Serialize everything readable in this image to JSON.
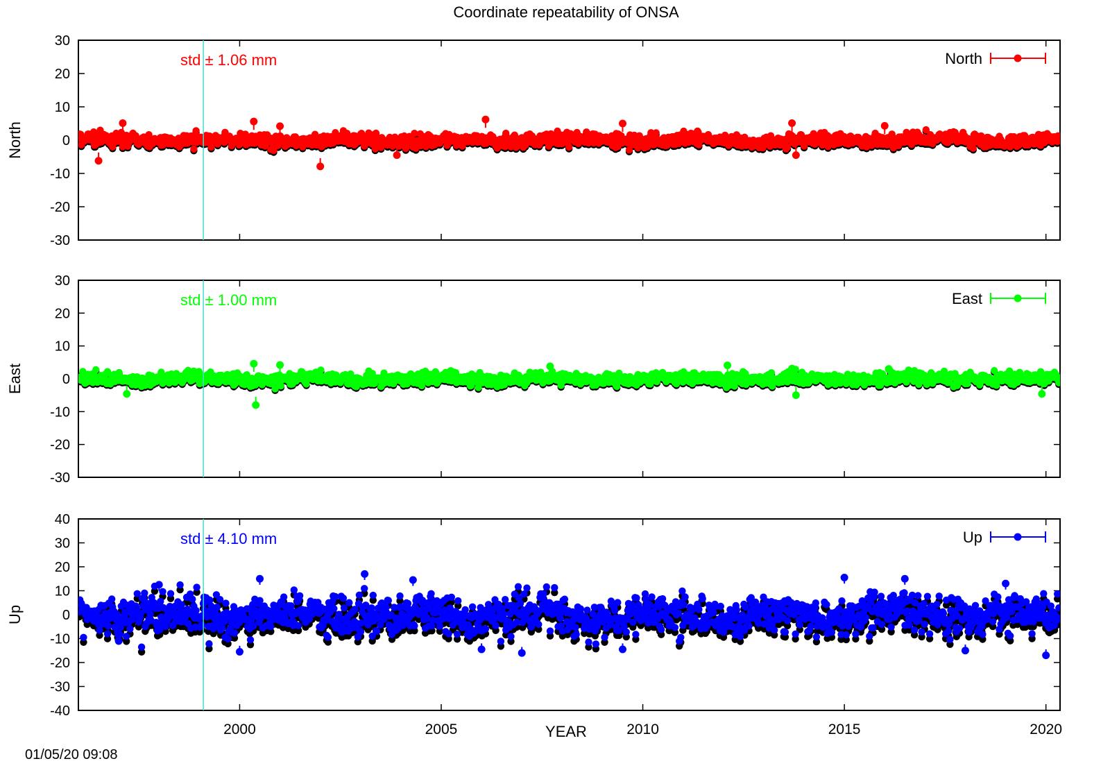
{
  "title": "Coordinate repeatability of ONSA",
  "timestamp": "01/05/20 09:08",
  "xlabel": "YEAR",
  "xaxis": {
    "range": [
      1996.0,
      2020.35
    ],
    "ticks": [
      2000,
      2005,
      2010,
      2015,
      2020
    ]
  },
  "marker_line": {
    "x": 1999.1,
    "color": "#40e0d0"
  },
  "residual_color": "#000000",
  "chart_data": [
    {
      "type": "scatter",
      "panel": "north",
      "ylabel": "North",
      "legend": "North",
      "legend_position": "top-right",
      "std_label": "std ± 1.06 mm",
      "color": "#ff0000",
      "ylim": [
        -30,
        30
      ],
      "yticks": [
        -30,
        -20,
        -10,
        0,
        10,
        20,
        30
      ],
      "std": 1.06,
      "outliers": [
        [
          1996.5,
          -6.2
        ],
        [
          1997.1,
          5.1
        ],
        [
          2000.35,
          5.6
        ],
        [
          2001.0,
          4.2
        ],
        [
          2002.0,
          -7.9
        ],
        [
          2003.9,
          -4.5
        ],
        [
          2006.1,
          6.2
        ],
        [
          2009.5,
          5.0
        ],
        [
          2013.7,
          5.1
        ],
        [
          2013.8,
          -4.5
        ],
        [
          2016.0,
          4.3
        ]
      ]
    },
    {
      "type": "scatter",
      "panel": "east",
      "ylabel": "East",
      "legend": "East",
      "legend_position": "top-right",
      "std_label": "std ± 1.00 mm",
      "color": "#00ff00",
      "ylim": [
        -30,
        30
      ],
      "yticks": [
        -30,
        -20,
        -10,
        0,
        10,
        20,
        30
      ],
      "std": 1.0,
      "outliers": [
        [
          1997.2,
          -4.6
        ],
        [
          2000.35,
          4.6
        ],
        [
          2000.4,
          -8.0
        ],
        [
          2001.0,
          4.2
        ],
        [
          2007.7,
          3.8
        ],
        [
          2012.1,
          4.1
        ],
        [
          2013.7,
          3.1
        ],
        [
          2013.8,
          -5.0
        ],
        [
          2016.1,
          3.0
        ],
        [
          2019.9,
          -4.6
        ]
      ]
    },
    {
      "type": "scatter",
      "panel": "up",
      "ylabel": "Up",
      "legend": "Up",
      "legend_position": "top-right",
      "std_label": "std ± 4.10 mm",
      "color": "#0000ff",
      "ylim": [
        -40,
        40
      ],
      "yticks": [
        -40,
        -30,
        -20,
        -10,
        0,
        10,
        20,
        30,
        40
      ],
      "std": 4.1,
      "outliers": [
        [
          1997.0,
          -11.0
        ],
        [
          1998.0,
          12.5
        ],
        [
          2000.0,
          -15.5
        ],
        [
          2000.5,
          15.0
        ],
        [
          2003.1,
          17.0
        ],
        [
          2004.3,
          14.5
        ],
        [
          2006.0,
          -14.5
        ],
        [
          2007.0,
          -16.0
        ],
        [
          2009.5,
          -14.5
        ],
        [
          2015.0,
          15.5
        ],
        [
          2016.5,
          15.0
        ],
        [
          2018.0,
          -15.0
        ],
        [
          2019.0,
          13.0
        ],
        [
          2020.0,
          -17.0
        ]
      ]
    }
  ]
}
